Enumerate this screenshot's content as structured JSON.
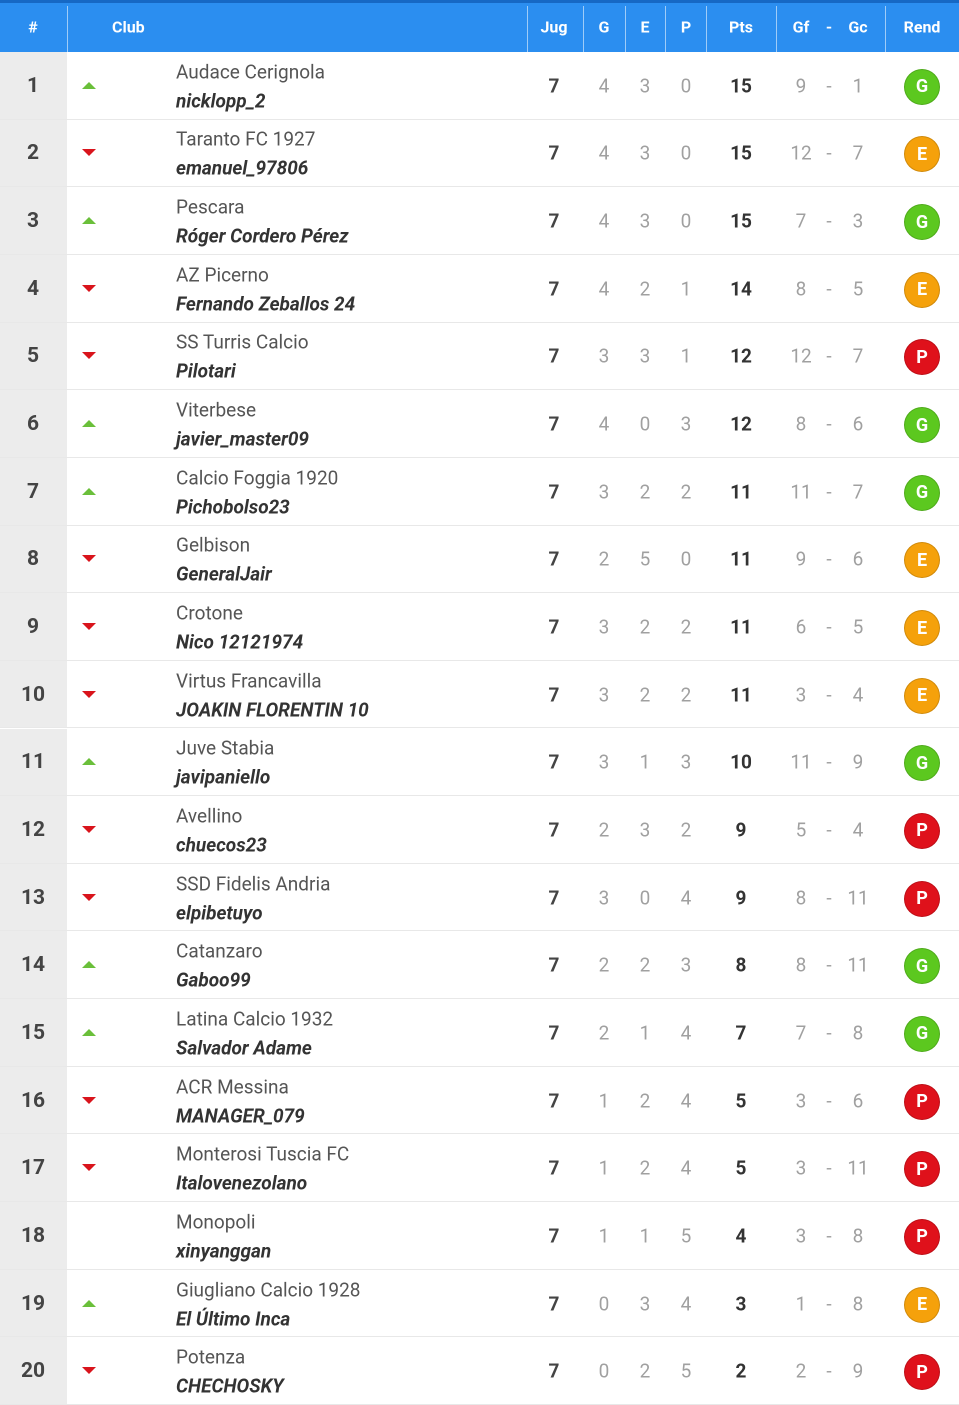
{
  "table": {
    "header": [
      "#",
      "Club",
      "Jug",
      "G",
      "E",
      "P",
      "Pts",
      "Gf",
      "Gc",
      "Rend"
    ],
    "separator": "-",
    "trend_colors": {
      "up": "#6abf3a",
      "down": "#d9141c"
    },
    "rend_colors": {
      "G": "#5cc81f",
      "E": "#f5a10b",
      "P": "#df111b"
    },
    "rows": [
      {
        "pos": 1,
        "trend": "up",
        "club": "Audace Cerignola",
        "manager": "nicklopp_2",
        "jug": 7,
        "g": 4,
        "e": 3,
        "p": 0,
        "pts": 15,
        "gf": 9,
        "gc": 1,
        "rend": "G"
      },
      {
        "pos": 2,
        "trend": "down",
        "club": "Taranto FC 1927",
        "manager": "emanuel_97806",
        "jug": 7,
        "g": 4,
        "e": 3,
        "p": 0,
        "pts": 15,
        "gf": 12,
        "gc": 7,
        "rend": "E"
      },
      {
        "pos": 3,
        "trend": "up",
        "club": "Pescara",
        "manager": "Róger Cordero Pérez",
        "jug": 7,
        "g": 4,
        "e": 3,
        "p": 0,
        "pts": 15,
        "gf": 7,
        "gc": 3,
        "rend": "G"
      },
      {
        "pos": 4,
        "trend": "down",
        "club": "AZ Picerno",
        "manager": "Fernando Zeballos 24",
        "jug": 7,
        "g": 4,
        "e": 2,
        "p": 1,
        "pts": 14,
        "gf": 8,
        "gc": 5,
        "rend": "E"
      },
      {
        "pos": 5,
        "trend": "down",
        "club": "SS Turris Calcio",
        "manager": "Pilotari",
        "jug": 7,
        "g": 3,
        "e": 3,
        "p": 1,
        "pts": 12,
        "gf": 12,
        "gc": 7,
        "rend": "P"
      },
      {
        "pos": 6,
        "trend": "up",
        "club": "Viterbese",
        "manager": "javier_master09",
        "jug": 7,
        "g": 4,
        "e": 0,
        "p": 3,
        "pts": 12,
        "gf": 8,
        "gc": 6,
        "rend": "G"
      },
      {
        "pos": 7,
        "trend": "up",
        "club": "Calcio Foggia 1920",
        "manager": "Pichobolso23",
        "jug": 7,
        "g": 3,
        "e": 2,
        "p": 2,
        "pts": 11,
        "gf": 11,
        "gc": 7,
        "rend": "G"
      },
      {
        "pos": 8,
        "trend": "down",
        "club": "Gelbison",
        "manager": "GeneralJair",
        "jug": 7,
        "g": 2,
        "e": 5,
        "p": 0,
        "pts": 11,
        "gf": 9,
        "gc": 6,
        "rend": "E"
      },
      {
        "pos": 9,
        "trend": "down",
        "club": "Crotone",
        "manager": "Nico 12121974",
        "jug": 7,
        "g": 3,
        "e": 2,
        "p": 2,
        "pts": 11,
        "gf": 6,
        "gc": 5,
        "rend": "E"
      },
      {
        "pos": 10,
        "trend": "down",
        "club": "Virtus Francavilla",
        "manager": "JOAKIN FLORENTIN 10",
        "jug": 7,
        "g": 3,
        "e": 2,
        "p": 2,
        "pts": 11,
        "gf": 3,
        "gc": 4,
        "rend": "E"
      },
      {
        "pos": 11,
        "trend": "up",
        "club": "Juve Stabia",
        "manager": "javipaniello",
        "jug": 7,
        "g": 3,
        "e": 1,
        "p": 3,
        "pts": 10,
        "gf": 11,
        "gc": 9,
        "rend": "G"
      },
      {
        "pos": 12,
        "trend": "down",
        "club": "Avellino",
        "manager": "chuecos23",
        "jug": 7,
        "g": 2,
        "e": 3,
        "p": 2,
        "pts": 9,
        "gf": 5,
        "gc": 4,
        "rend": "P"
      },
      {
        "pos": 13,
        "trend": "down",
        "club": "SSD Fidelis Andria",
        "manager": "elpibetuyo",
        "jug": 7,
        "g": 3,
        "e": 0,
        "p": 4,
        "pts": 9,
        "gf": 8,
        "gc": 11,
        "rend": "P"
      },
      {
        "pos": 14,
        "trend": "up",
        "club": "Catanzaro",
        "manager": "Gaboo99",
        "jug": 7,
        "g": 2,
        "e": 2,
        "p": 3,
        "pts": 8,
        "gf": 8,
        "gc": 11,
        "rend": "G"
      },
      {
        "pos": 15,
        "trend": "up",
        "club": "Latina Calcio 1932",
        "manager": "Salvador Adame",
        "jug": 7,
        "g": 2,
        "e": 1,
        "p": 4,
        "pts": 7,
        "gf": 7,
        "gc": 8,
        "rend": "G"
      },
      {
        "pos": 16,
        "trend": "down",
        "club": "ACR Messina",
        "manager": "MANAGER_079",
        "jug": 7,
        "g": 1,
        "e": 2,
        "p": 4,
        "pts": 5,
        "gf": 3,
        "gc": 6,
        "rend": "P"
      },
      {
        "pos": 17,
        "trend": "down",
        "club": "Monterosi Tuscia FC",
        "manager": "Italovenezolano",
        "jug": 7,
        "g": 1,
        "e": 2,
        "p": 4,
        "pts": 5,
        "gf": 3,
        "gc": 11,
        "rend": "P"
      },
      {
        "pos": 18,
        "trend": null,
        "club": "Monopoli",
        "manager": "xinyanggan",
        "jug": 7,
        "g": 1,
        "e": 1,
        "p": 5,
        "pts": 4,
        "gf": 3,
        "gc": 8,
        "rend": "P"
      },
      {
        "pos": 19,
        "trend": "up",
        "club": "Giugliano Calcio 1928",
        "manager": "El Último Inca",
        "jug": 7,
        "g": 0,
        "e": 3,
        "p": 4,
        "pts": 3,
        "gf": 1,
        "gc": 8,
        "rend": "E"
      },
      {
        "pos": 20,
        "trend": "down",
        "club": "Potenza",
        "manager": "CHECHOSKY",
        "jug": 7,
        "g": 0,
        "e": 2,
        "p": 5,
        "pts": 2,
        "gf": 2,
        "gc": 9,
        "rend": "P"
      }
    ]
  }
}
